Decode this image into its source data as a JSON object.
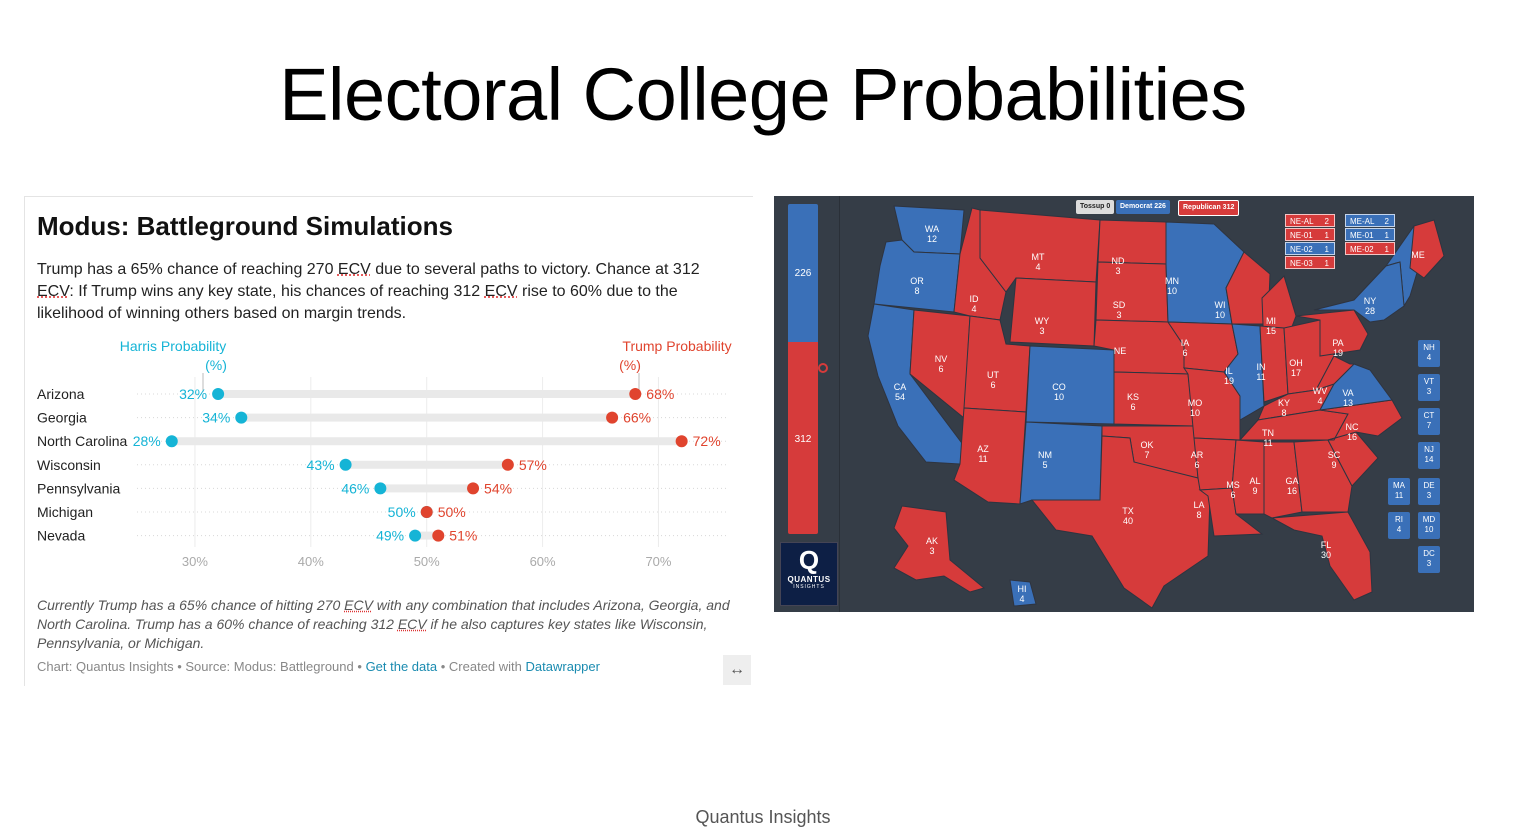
{
  "slide": {
    "title": "Electoral College Probabilities",
    "footer": "Quantus Insights"
  },
  "card": {
    "title": "Modus: Battleground Simulations",
    "desc_parts": [
      "Trump has a 65% chance of reaching 270 ",
      "ECV",
      " due to several paths to victory. Chance at 312 ",
      "ECV",
      ": If Trump wins any key state, his chances of reaching 312 ",
      "ECV",
      " rise to 60% due to the likelihood of winning others based on margin trends."
    ],
    "notes_parts": [
      "Currently Trump has a 65% chance of hitting 270 ",
      "ECV",
      " with any combination that includes Arizona, Georgia, and North Carolina. Trump has a 60% chance of reaching 312 ",
      "ECV",
      " if he also captures key states like Wisconsin, Pennsylvania, or Michigan."
    ],
    "credits": {
      "chart": "Chart: Quantus Insights",
      "source": "• Source: Modus: Battleground",
      "sep1": "•",
      "get_data": "Get the data",
      "created": "• Created with",
      "tool": "Datawrapper"
    },
    "expand_icon": "↔"
  },
  "chart_data": {
    "type": "dot",
    "categories": [
      "Arizona",
      "Georgia",
      "North Carolina",
      "Wisconsin",
      "Pennsylvania",
      "Michigan",
      "Nevada"
    ],
    "series": [
      {
        "name": "Harris Probability (%)",
        "values": [
          32,
          34,
          28,
          43,
          46,
          50,
          49
        ],
        "color": "#15b4d6"
      },
      {
        "name": "Trump Probability (%)",
        "values": [
          68,
          66,
          72,
          57,
          54,
          50,
          51
        ],
        "color": "#e0442e"
      }
    ],
    "xlim": [
      25,
      76
    ],
    "xticks": [
      30,
      40,
      50,
      60,
      70
    ],
    "xtick_labels": [
      "30%",
      "40%",
      "50%",
      "60%",
      "70%"
    ],
    "value_suffix": "%",
    "grid": true,
    "legend_labels": {
      "harris": [
        "Harris Probability",
        "(%)"
      ],
      "trump": [
        "Trump Probability",
        "(%)"
      ]
    }
  },
  "map": {
    "legend": {
      "tossup": "Tossup 0",
      "dem": "Democrat 226",
      "rep": "Republican 312"
    },
    "dem_total": "226",
    "rep_total": "312",
    "colors": {
      "dem": "#3a70b8",
      "rep": "#d63b3b",
      "panel": "#353d47"
    },
    "ne_boxes": [
      {
        "label": "NE-AL",
        "ev": "2",
        "party": "rep"
      },
      {
        "label": "NE-01",
        "ev": "1",
        "party": "rep"
      },
      {
        "label": "NE-02",
        "ev": "1",
        "party": "dem"
      },
      {
        "label": "NE-03",
        "ev": "1",
        "party": "rep"
      }
    ],
    "me_boxes": [
      {
        "label": "ME-AL",
        "ev": "2",
        "party": "dem"
      },
      {
        "label": "ME-01",
        "ev": "1",
        "party": "dem"
      },
      {
        "label": "ME-02",
        "ev": "1",
        "party": "rep"
      }
    ],
    "small_states": [
      {
        "abbr": "NH",
        "ev": "4"
      },
      {
        "abbr": "VT",
        "ev": "3"
      },
      {
        "abbr": "CT",
        "ev": "7"
      },
      {
        "abbr": "NJ",
        "ev": "14"
      },
      {
        "abbr": "MA",
        "ev": "11"
      },
      {
        "abbr": "DE",
        "ev": "3"
      },
      {
        "abbr": "RI",
        "ev": "4"
      },
      {
        "abbr": "MD",
        "ev": "10"
      },
      {
        "abbr": "DC",
        "ev": "3"
      }
    ],
    "states": [
      {
        "abbr": "WA",
        "ev": "12",
        "party": "dem"
      },
      {
        "abbr": "OR",
        "ev": "8",
        "party": "dem"
      },
      {
        "abbr": "CA",
        "ev": "54",
        "party": "dem"
      },
      {
        "abbr": "NV",
        "ev": "6",
        "party": "rep"
      },
      {
        "abbr": "ID",
        "ev": "4",
        "party": "rep"
      },
      {
        "abbr": "MT",
        "ev": "4",
        "party": "rep"
      },
      {
        "abbr": "WY",
        "ev": "3",
        "party": "rep"
      },
      {
        "abbr": "UT",
        "ev": "6",
        "party": "rep"
      },
      {
        "abbr": "AZ",
        "ev": "11",
        "party": "rep"
      },
      {
        "abbr": "CO",
        "ev": "10",
        "party": "dem"
      },
      {
        "abbr": "NM",
        "ev": "5",
        "party": "dem"
      },
      {
        "abbr": "ND",
        "ev": "3",
        "party": "rep"
      },
      {
        "abbr": "SD",
        "ev": "3",
        "party": "rep"
      },
      {
        "abbr": "NE",
        "ev": "",
        "party": "rep"
      },
      {
        "abbr": "KS",
        "ev": "6",
        "party": "rep"
      },
      {
        "abbr": "OK",
        "ev": "7",
        "party": "rep"
      },
      {
        "abbr": "TX",
        "ev": "40",
        "party": "rep"
      },
      {
        "abbr": "MN",
        "ev": "10",
        "party": "dem"
      },
      {
        "abbr": "IA",
        "ev": "6",
        "party": "rep"
      },
      {
        "abbr": "MO",
        "ev": "10",
        "party": "rep"
      },
      {
        "abbr": "AR",
        "ev": "6",
        "party": "rep"
      },
      {
        "abbr": "LA",
        "ev": "8",
        "party": "rep"
      },
      {
        "abbr": "WI",
        "ev": "10",
        "party": "rep"
      },
      {
        "abbr": "IL",
        "ev": "19",
        "party": "dem"
      },
      {
        "abbr": "MI",
        "ev": "15",
        "party": "rep"
      },
      {
        "abbr": "IN",
        "ev": "11",
        "party": "rep"
      },
      {
        "abbr": "OH",
        "ev": "17",
        "party": "rep"
      },
      {
        "abbr": "KY",
        "ev": "8",
        "party": "rep"
      },
      {
        "abbr": "TN",
        "ev": "11",
        "party": "rep"
      },
      {
        "abbr": "MS",
        "ev": "6",
        "party": "rep"
      },
      {
        "abbr": "AL",
        "ev": "9",
        "party": "rep"
      },
      {
        "abbr": "GA",
        "ev": "16",
        "party": "rep"
      },
      {
        "abbr": "FL",
        "ev": "30",
        "party": "rep"
      },
      {
        "abbr": "SC",
        "ev": "9",
        "party": "rep"
      },
      {
        "abbr": "NC",
        "ev": "16",
        "party": "rep"
      },
      {
        "abbr": "VA",
        "ev": "13",
        "party": "dem"
      },
      {
        "abbr": "WV",
        "ev": "4",
        "party": "rep"
      },
      {
        "abbr": "PA",
        "ev": "19",
        "party": "rep"
      },
      {
        "abbr": "NY",
        "ev": "28",
        "party": "dem"
      },
      {
        "abbr": "ME",
        "ev": "",
        "party": "rep"
      },
      {
        "abbr": "AK",
        "ev": "3",
        "party": "rep"
      },
      {
        "abbr": "HI",
        "ev": "4",
        "party": "dem"
      }
    ],
    "logo": {
      "letter": "Q",
      "name": "QUANTUS",
      "sub": "INSIGHTS"
    }
  }
}
